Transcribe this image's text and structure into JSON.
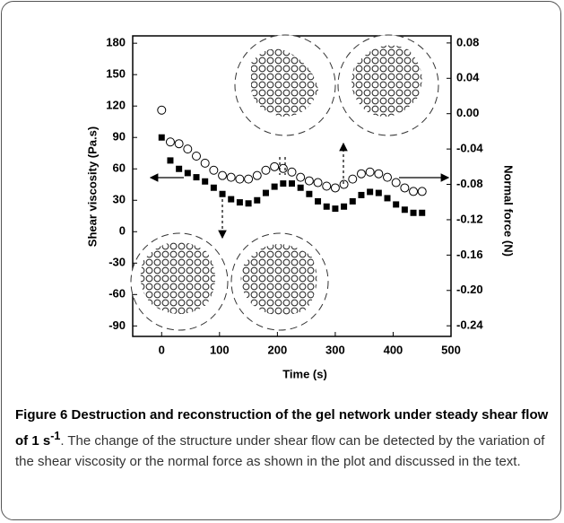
{
  "chart_data": {
    "type": "scatter",
    "xlabel": "Time (s)",
    "ylabel": "Shear viscosity (Pa.s)",
    "y2label": "Normal force (N)",
    "xlim": [
      -50,
      500
    ],
    "xticks": [
      0,
      100,
      200,
      300,
      400,
      500
    ],
    "ylim": [
      -100,
      187
    ],
    "yticks": [
      -90,
      -60,
      -30,
      0,
      30,
      60,
      90,
      120,
      150,
      180
    ],
    "y2lim": [
      -0.252,
      0.088
    ],
    "y2ticks": [
      -0.24,
      {
        "value": -0.2,
        "label": "-0.20"
      },
      -0.16,
      -0.12,
      -0.08,
      -0.04,
      {
        "value": 0,
        "label": "0.00"
      },
      0.04,
      0.08
    ],
    "x": [
      0,
      15,
      30,
      45,
      60,
      75,
      90,
      105,
      120,
      135,
      150,
      165,
      180,
      195,
      210,
      225,
      240,
      255,
      270,
      285,
      300,
      315,
      330,
      345,
      360,
      375,
      390,
      405,
      420,
      435,
      450
    ],
    "series": [
      {
        "color": "#000000",
        "marker": "square",
        "values": [
          90,
          68,
          60,
          56,
          52,
          48,
          42,
          36,
          31,
          28,
          27,
          30,
          37,
          43,
          46,
          46,
          42,
          36,
          29,
          24,
          22,
          24,
          29,
          35,
          38,
          37,
          32,
          26,
          21,
          18,
          18
        ]
      },
      {
        "color": "#000000",
        "marker": "open-circle",
        "axis": "y2",
        "values": [
          0.004,
          -0.032,
          -0.034,
          -0.04,
          -0.048,
          -0.056,
          -0.064,
          -0.07,
          -0.072,
          -0.074,
          -0.074,
          -0.07,
          -0.064,
          -0.06,
          -0.062,
          -0.066,
          -0.072,
          -0.076,
          -0.078,
          -0.082,
          -0.084,
          -0.08,
          -0.074,
          -0.068,
          -0.066,
          -0.068,
          -0.072,
          -0.078,
          -0.084,
          -0.088,
          -0.088
        ]
      }
    ]
  },
  "caption": {
    "label": "Figure 6",
    "title": "Destruction and reconstruction of the gel network under steady shear flow of 1 s",
    "superscript": "-1",
    "text": ". The change of the structure under shear flow can be detected by the variation of the shear viscosity or the normal force as shown in the plot and discussed in the text."
  }
}
